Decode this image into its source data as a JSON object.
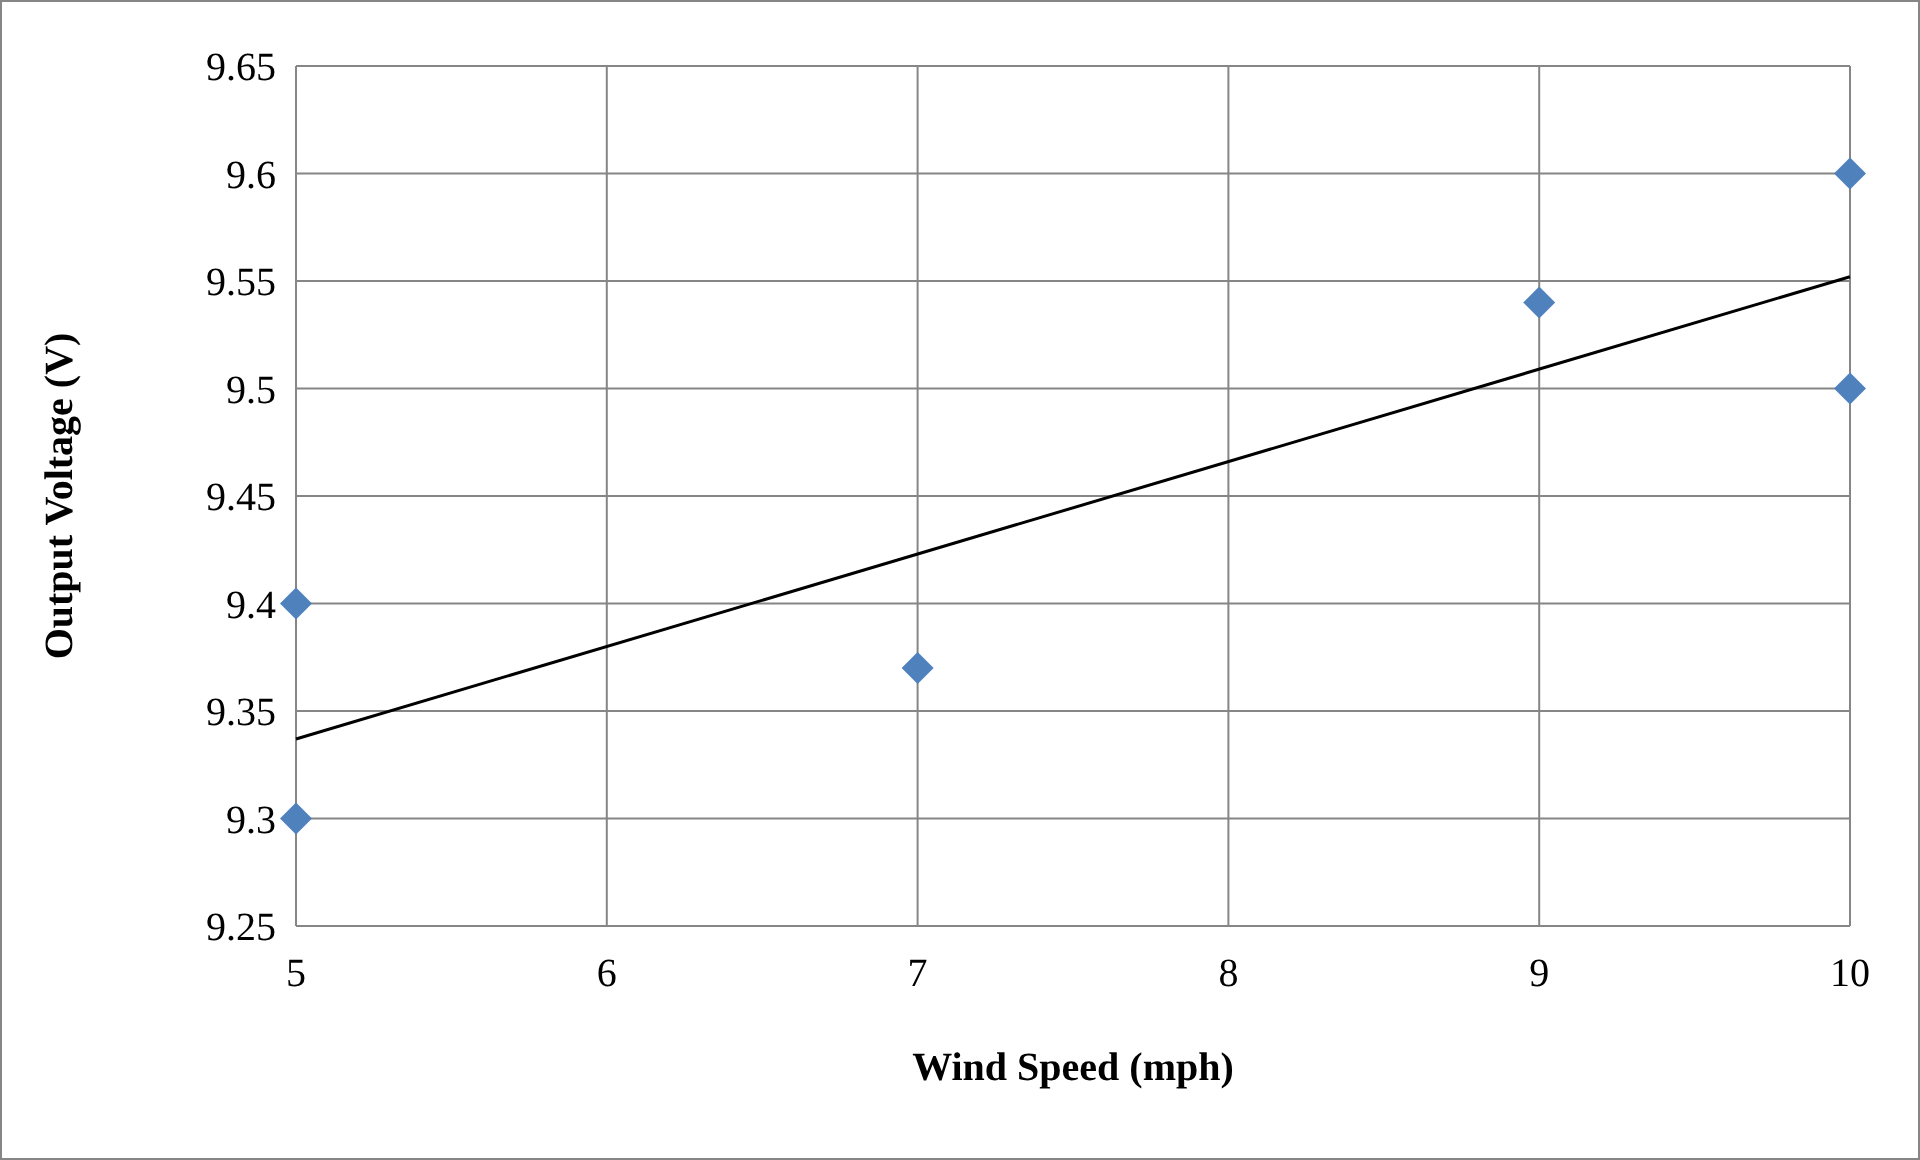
{
  "chart_data": {
    "type": "scatter",
    "xlabel": "Wind Speed (mph)",
    "ylabel": "Output Voltage (V)",
    "xlim": [
      5,
      10
    ],
    "xticks": [
      5,
      6,
      7,
      8,
      9,
      10
    ],
    "ylim": [
      9.25,
      9.65
    ],
    "yticks": [
      9.25,
      9.3,
      9.35,
      9.4,
      9.45,
      9.5,
      9.55,
      9.6,
      9.65
    ],
    "grid": true,
    "marker": "diamond",
    "series": [
      {
        "color": "#4f81bd",
        "x": [
          5,
          5,
          7,
          9,
          10,
          10
        ],
        "values": [
          9.4,
          9.3,
          9.37,
          9.54,
          9.6,
          9.5
        ]
      },
      {
        "type": "line",
        "color": "#000000",
        "marker": "none",
        "line_style": "solid",
        "x": [
          5,
          10
        ],
        "values": [
          9.337,
          9.552
        ]
      }
    ]
  }
}
